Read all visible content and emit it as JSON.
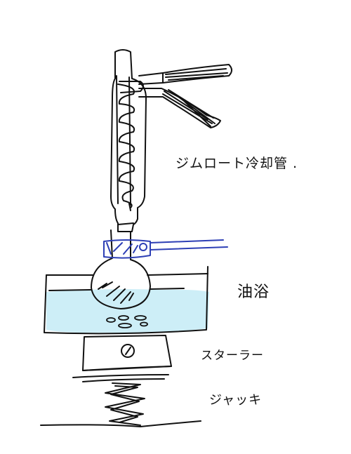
{
  "labels": {
    "condenser": "ジムロート冷却管 .",
    "bath": "油浴",
    "stirrer": "スターラー",
    "jack": "ジャッキ"
  },
  "colors": {
    "ink": "#111111",
    "bath_fill": "#cdeef7",
    "clamp": "#2d3fb5"
  },
  "icons": {
    "stirrer_knob": "circle-dial-icon"
  }
}
